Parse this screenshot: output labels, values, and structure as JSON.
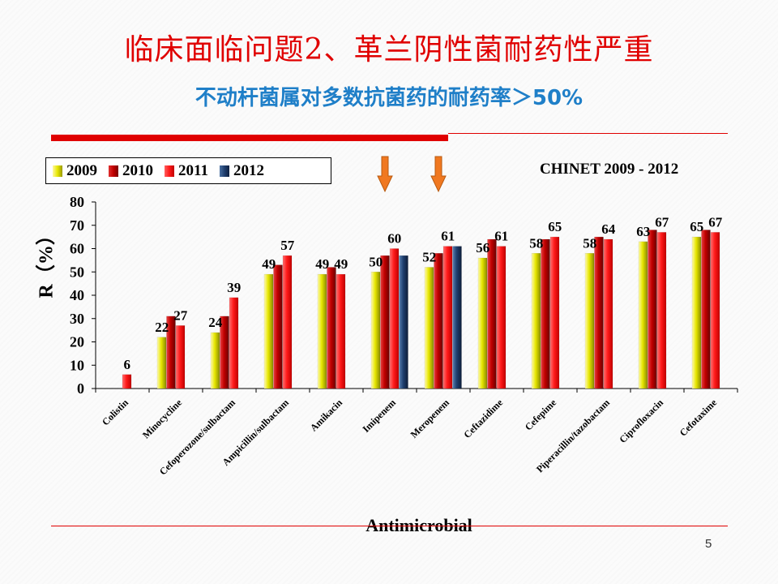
{
  "slide": {
    "title": "临床面临问题2、革兰阴性菌耐药性严重",
    "subtitle": "不动杆菌属对多数抗菌药的耐药率＞50%",
    "page_number": "5"
  },
  "colors": {
    "accent_red": "#e00000",
    "subtitle_blue": "#1f7fc8"
  },
  "chart_data": {
    "type": "bar",
    "source_note": "CHINET 2009 - 2012",
    "xlabel": "Antimicrobial",
    "ylabel": "R（%）",
    "ylim": [
      0,
      80
    ],
    "yticks": [
      0,
      10,
      20,
      30,
      40,
      50,
      60,
      70,
      80
    ],
    "legend_position": "top-left",
    "categories": [
      "Colistin",
      "Minocycline",
      "Cefoperozone/sulbactam",
      "Ampicillin/sulbactam",
      "Amikacin",
      "Imipenem",
      "Meropenem",
      "Ceftazidime",
      "Cefepime",
      "Piperacillin/tazobactam",
      "Ciprofloxacin",
      "Cefotaxime"
    ],
    "series": [
      {
        "name": "2009",
        "color": "#e6e600",
        "values": [
          null,
          22,
          24,
          49,
          49,
          50,
          52,
          56,
          58,
          58,
          63,
          65
        ]
      },
      {
        "name": "2010",
        "color": "#c00000",
        "values": [
          null,
          31,
          31,
          53,
          52,
          57,
          58,
          64,
          64,
          65,
          68,
          68
        ]
      },
      {
        "name": "2011",
        "color": "#ff1a1a",
        "values": [
          6,
          27,
          39,
          57,
          49,
          60,
          61,
          61,
          65,
          64,
          67,
          67
        ]
      },
      {
        "name": "2012",
        "color": "#1f3f6f",
        "values": [
          null,
          null,
          null,
          null,
          null,
          57,
          61,
          null,
          null,
          null,
          null,
          null
        ]
      }
    ],
    "data_labels": [
      {
        "category": "Colistin",
        "series": "2011",
        "text": "6"
      },
      {
        "category": "Minocycline",
        "series": "2009",
        "text": "22"
      },
      {
        "category": "Minocycline",
        "series": "2011",
        "text": "27"
      },
      {
        "category": "Cefoperozone/sulbactam",
        "series": "2009",
        "text": "24"
      },
      {
        "category": "Cefoperozone/sulbactam",
        "series": "2011",
        "text": "39"
      },
      {
        "category": "Ampicillin/sulbactam",
        "series": "2009",
        "text": "49"
      },
      {
        "category": "Ampicillin/sulbactam",
        "series": "2011",
        "text": "57"
      },
      {
        "category": "Amikacin",
        "series": "2009",
        "text": "49"
      },
      {
        "category": "Amikacin",
        "series": "2011",
        "text": "49"
      },
      {
        "category": "Imipenem",
        "series": "2009",
        "text": "50"
      },
      {
        "category": "Imipenem",
        "series": "2011",
        "text": "60"
      },
      {
        "category": "Meropenem",
        "series": "2009",
        "text": "52"
      },
      {
        "category": "Meropenem",
        "series": "2011",
        "text": "61"
      },
      {
        "category": "Ceftazidime",
        "series": "2009",
        "text": "56"
      },
      {
        "category": "Ceftazidime",
        "series": "2011",
        "text": "61"
      },
      {
        "category": "Cefepime",
        "series": "2009",
        "text": "58"
      },
      {
        "category": "Cefepime",
        "series": "2011",
        "text": "65"
      },
      {
        "category": "Piperacillin/tazobactam",
        "series": "2009",
        "text": "58"
      },
      {
        "category": "Piperacillin/tazobactam",
        "series": "2011",
        "text": "64"
      },
      {
        "category": "Ciprofloxacin",
        "series": "2009",
        "text": "63"
      },
      {
        "category": "Ciprofloxacin",
        "series": "2011",
        "text": "67"
      },
      {
        "category": "Cefotaxime",
        "series": "2009",
        "text": "65"
      },
      {
        "category": "Cefotaxime",
        "series": "2011",
        "text": "67"
      }
    ],
    "highlight_arrows": {
      "categories": [
        "Imipenem",
        "Meropenem"
      ],
      "color": "#f07820",
      "icon": "down-arrow-icon"
    }
  }
}
